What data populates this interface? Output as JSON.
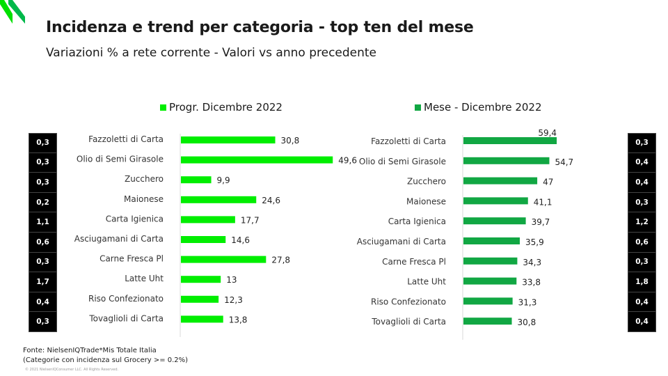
{
  "header": {
    "title": "Incidenza e trend per categoria - top ten del mese",
    "subtitle": "Variazioni % a rete corrente - Valori vs anno precedente"
  },
  "colors": {
    "bright_green": "#00ee00",
    "dark_green": "#11a743",
    "box_bg": "#000000",
    "box_text": "#ffffff"
  },
  "chart_data": [
    {
      "type": "bar",
      "orientation": "horizontal",
      "series": [
        {
          "name": "Progr. Dicembre 2022",
          "values": [
            30.8,
            49.6,
            9.9,
            24.6,
            17.7,
            14.6,
            27.8,
            13,
            12.3,
            13.8
          ]
        }
      ],
      "categories": [
        "Fazzoletti di Carta",
        "Olio di Semi Girasole",
        "Zucchero",
        "Maionese",
        "Carta Igienica",
        "Asciugamani di Carta",
        "Carne Fresca Pl",
        "Latte Uht",
        "Riso Confezionato",
        "Tovaglioli di Carta"
      ],
      "value_labels": [
        "30,8",
        "49,6",
        "9,9",
        "24,6",
        "17,7",
        "14,6",
        "27,8",
        "13",
        "12,3",
        "13,8"
      ],
      "incidence_labels": [
        "0,3",
        "0,3",
        "0,3",
        "0,2",
        "1,1",
        "0,6",
        "0,3",
        "1,7",
        "0,4",
        "0,3"
      ],
      "color": "#00ee00",
      "xlim": [
        0,
        50
      ]
    },
    {
      "type": "bar",
      "orientation": "horizontal",
      "series": [
        {
          "name": "Mese - Dicembre 2022",
          "values": [
            59.4,
            54.7,
            47,
            41.1,
            39.7,
            35.9,
            34.3,
            33.8,
            31.3,
            30.8
          ]
        }
      ],
      "categories": [
        "Fazzoletti di Carta",
        "Olio di Semi Girasole",
        "Zucchero",
        "Maionese",
        "Carta Igienica",
        "Asciugamani di Carta",
        "Carne Fresca Pl",
        "Latte Uht",
        "Riso Confezionato",
        "Tovaglioli di Carta"
      ],
      "value_labels": [
        "59,4",
        "54,7",
        "47",
        "41,1",
        "39,7",
        "35,9",
        "34,3",
        "33,8",
        "31,3",
        "30,8"
      ],
      "incidence_labels": [
        "0,3",
        "0,4",
        "0,4",
        "0,3",
        "1,2",
        "0,6",
        "0,3",
        "1,8",
        "0,4",
        "0,4"
      ],
      "color": "#11a743",
      "xlim": [
        0,
        70
      ]
    }
  ],
  "footer": {
    "source": "Fonte: NielsenIQTrade*Mis Totale Italia",
    "note": "(Categorie con incidenza sul Grocery >= 0.2%)",
    "copyright": "© 2021 NielsenIQConsumer LLC. All Rights Reserved."
  }
}
